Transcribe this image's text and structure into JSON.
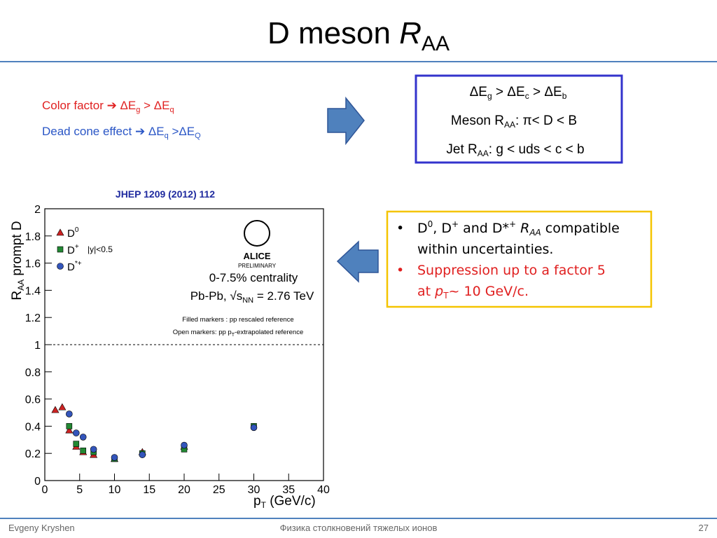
{
  "header": {
    "title": "D meson ",
    "title_r": "R",
    "title_sub": "AA"
  },
  "left_text": {
    "line1": [
      "Color factor ➔  ΔE",
      "g",
      " > ΔE",
      "q"
    ],
    "line2": [
      "Dead cone effect ➔ ΔE",
      "q",
      " >ΔE",
      "Q"
    ]
  },
  "box": {
    "line1": [
      "ΔE",
      "g",
      " > ΔE",
      "c",
      " > ΔE",
      "b"
    ],
    "line2": [
      "Meson R",
      "AA",
      ": π< D < B"
    ],
    "line3": [
      "Jet R",
      "AA",
      ": g < uds < c < b"
    ]
  },
  "reference": "JHEP 1209 (2012) 112",
  "bullets": [
    {
      "parts": [
        "D",
        "0",
        ", D",
        "+",
        " and D*",
        "+",
        " ",
        "R",
        "AA",
        " compatible"
      ],
      "cont": "within uncertainties."
    },
    {
      "parts": [
        "Suppression up to a factor 5"
      ],
      "cont": [
        "at   ",
        "p",
        "T",
        "~ 10 GeV/c."
      ]
    }
  ],
  "plot": {
    "ylabel": [
      "R",
      "AA",
      "  prompt D"
    ],
    "xlabel": [
      "p",
      "T",
      " (GeV/c)"
    ],
    "xlim": [
      0,
      40
    ],
    "ylim": [
      0,
      2
    ],
    "xticks": [
      0,
      5,
      10,
      15,
      20,
      25,
      30,
      35,
      40
    ],
    "yticks": [
      0,
      0.2,
      0.4,
      0.6,
      0.8,
      1,
      1.2,
      1.4,
      1.6,
      1.8,
      2
    ],
    "reference_line": 1,
    "rapidity": "|y|<0.5",
    "logo": "ALICE",
    "logo_sub": "PRELIMINARY",
    "centrality": "0-7.5% centrality",
    "system": [
      "Pb-Pb, ",
      "√s",
      "NN",
      " = 2.76 TeV"
    ],
    "note1": "Filled markers : pp rescaled reference",
    "note2": [
      "Open markers: pp p",
      "T",
      "-extrapolated reference"
    ],
    "series": [
      {
        "name": "D",
        "name_sup": "0",
        "color": "#cc2222",
        "marker": "triangle",
        "x": [
          1.5,
          2.5,
          3.5,
          4.5,
          5.5,
          7,
          10,
          14,
          20
        ],
        "values": [
          0.52,
          0.54,
          0.37,
          0.25,
          0.21,
          0.19,
          0.16,
          0.21,
          0.25
        ]
      },
      {
        "name": "D",
        "name_sup": "+",
        "color": "#228833",
        "marker": "square",
        "x": [
          3.5,
          4.5,
          5.5,
          7,
          10,
          14,
          20,
          30
        ],
        "values": [
          0.4,
          0.27,
          0.22,
          0.21,
          0.16,
          0.2,
          0.23,
          0.4
        ]
      },
      {
        "name": "D",
        "name_sup": "*+",
        "color": "#3355bb",
        "marker": "circle",
        "x": [
          3.5,
          4.5,
          5.5,
          7,
          10,
          14,
          20,
          30
        ],
        "values": [
          0.49,
          0.35,
          0.32,
          0.23,
          0.17,
          0.19,
          0.26,
          0.39
        ]
      }
    ]
  },
  "footer": {
    "author": "Evgeny Kryshen",
    "course": "Физика столкновений тяжелых ионов",
    "page": "27"
  }
}
